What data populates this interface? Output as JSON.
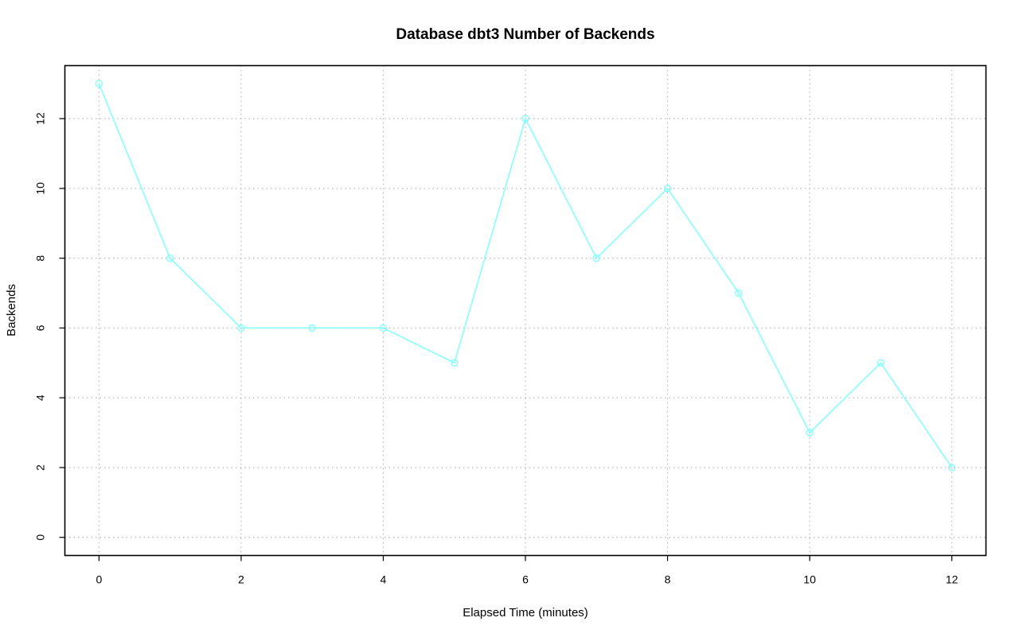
{
  "chart_data": {
    "type": "line",
    "title": "Database dbt3 Number of Backends",
    "xlabel": "Elapsed Time (minutes)",
    "ylabel": "Backends",
    "x": [
      0,
      1,
      2,
      3,
      4,
      5,
      6,
      7,
      8,
      9,
      10,
      11,
      12
    ],
    "series": [
      {
        "values": [
          13,
          8,
          6,
          6,
          6,
          5,
          12,
          8,
          10,
          7,
          3,
          5,
          2
        ]
      }
    ],
    "xlim": [
      -0.48,
      12.48
    ],
    "ylim": [
      -0.52,
      13.52
    ],
    "xticks": [
      0,
      2,
      4,
      6,
      8,
      10,
      12
    ],
    "yticks": [
      0,
      2,
      4,
      6,
      8,
      10,
      12
    ],
    "grid": true,
    "marker": "open-circle",
    "colors": {
      "series": "#7fffff",
      "grid": "#bebebe",
      "axis": "#000000"
    }
  }
}
